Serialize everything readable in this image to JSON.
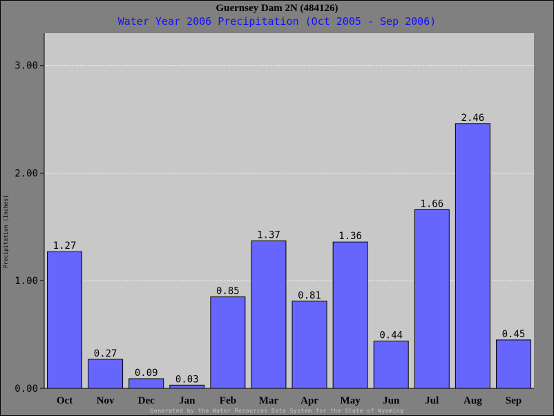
{
  "header": {
    "title": "Guernsey Dam 2N (484126)",
    "subtitle": "Water Year 2006 Precipitation (Oct 2005 - Sep 2006)"
  },
  "footer": {
    "text": "Generated by the Water Resources Data System for the State of Wyoming"
  },
  "colors": {
    "bar": "#6666ff",
    "plot_bg": "#c8c8c8",
    "page_bg": "#808080",
    "subtitle": "#1010ff"
  },
  "chart_data": {
    "type": "bar",
    "title": "Guernsey Dam 2N (484126)",
    "subtitle": "Water Year 2006 Precipitation (Oct 2005 - Sep 2006)",
    "xlabel": "",
    "ylabel": "Precipitation (Inches)",
    "categories": [
      "Oct",
      "Nov",
      "Dec",
      "Jan",
      "Feb",
      "Mar",
      "Apr",
      "May",
      "Jun",
      "Jul",
      "Aug",
      "Sep"
    ],
    "values": [
      1.27,
      0.27,
      0.09,
      0.03,
      0.85,
      1.37,
      0.81,
      1.36,
      0.44,
      1.66,
      2.46,
      0.45
    ],
    "value_labels": [
      "1.27",
      "0.27",
      "0.09",
      "0.03",
      "0.85",
      "1.37",
      "0.81",
      "1.36",
      "0.44",
      "1.66",
      "2.46",
      "0.45"
    ],
    "ylim": [
      0,
      3.3
    ],
    "yticks": [
      0,
      1,
      2,
      3
    ],
    "ytick_labels": [
      "0.00",
      "1.00",
      "2.00",
      "3.00"
    ],
    "grid": true
  }
}
